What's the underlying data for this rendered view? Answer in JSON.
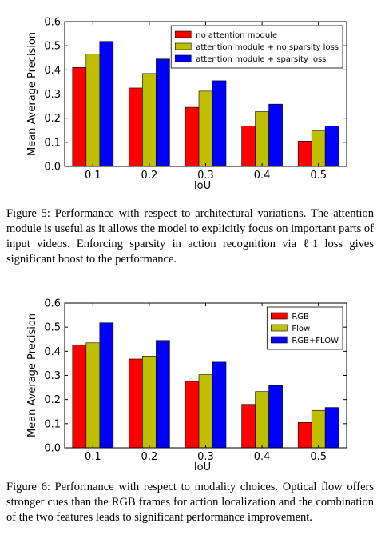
{
  "chart_data": [
    {
      "type": "bar",
      "categories": [
        "0.1",
        "0.2",
        "0.3",
        "0.4",
        "0.5"
      ],
      "series": [
        {
          "name": "no attention module",
          "color": "#ff0000",
          "values": [
            0.41,
            0.325,
            0.245,
            0.167,
            0.105
          ]
        },
        {
          "name": "attention module + no sparsity loss",
          "color": "#bfbf00",
          "values": [
            0.465,
            0.385,
            0.312,
            0.227,
            0.147
          ]
        },
        {
          "name": "attention module + sparsity loss",
          "color": "#0000ff",
          "values": [
            0.518,
            0.445,
            0.355,
            0.258,
            0.167
          ]
        }
      ],
      "xlabel": "IoU",
      "ylabel": "Mean Average Precision",
      "ylim": [
        0.0,
        0.6
      ],
      "yticks": [
        "0.0",
        "0.1",
        "0.2",
        "0.3",
        "0.4",
        "0.5",
        "0.6"
      ],
      "legend_position": "top-right",
      "grid": false
    },
    {
      "type": "bar",
      "categories": [
        "0.1",
        "0.2",
        "0.3",
        "0.4",
        "0.5"
      ],
      "series": [
        {
          "name": "RGB",
          "color": "#ff0000",
          "values": [
            0.425,
            0.368,
            0.275,
            0.18,
            0.105
          ]
        },
        {
          "name": "Flow",
          "color": "#bfbf00",
          "values": [
            0.435,
            0.38,
            0.303,
            0.233,
            0.155
          ]
        },
        {
          "name": "RGB+FLOW",
          "color": "#0000ff",
          "values": [
            0.518,
            0.445,
            0.355,
            0.258,
            0.167
          ]
        }
      ],
      "xlabel": "IoU",
      "ylabel": "Mean Average Precision",
      "ylim": [
        0.0,
        0.6
      ],
      "yticks": [
        "0.0",
        "0.1",
        "0.2",
        "0.3",
        "0.4",
        "0.5",
        "0.6"
      ],
      "legend_position": "top-right",
      "grid": false
    }
  ],
  "captions": {
    "fig5": "Figure 5: Performance with respect to architectural variations. The attention module is useful as it allows the model to explicitly focus on important parts of input videos. Enforcing sparsity in action recognition via ℓ1 loss gives significant boost to the performance.",
    "fig6": "Figure 6: Performance with respect to modality choices. Optical flow offers stronger cues than the RGB frames for action localization and the combination of the two features leads to significant performance improvement."
  }
}
